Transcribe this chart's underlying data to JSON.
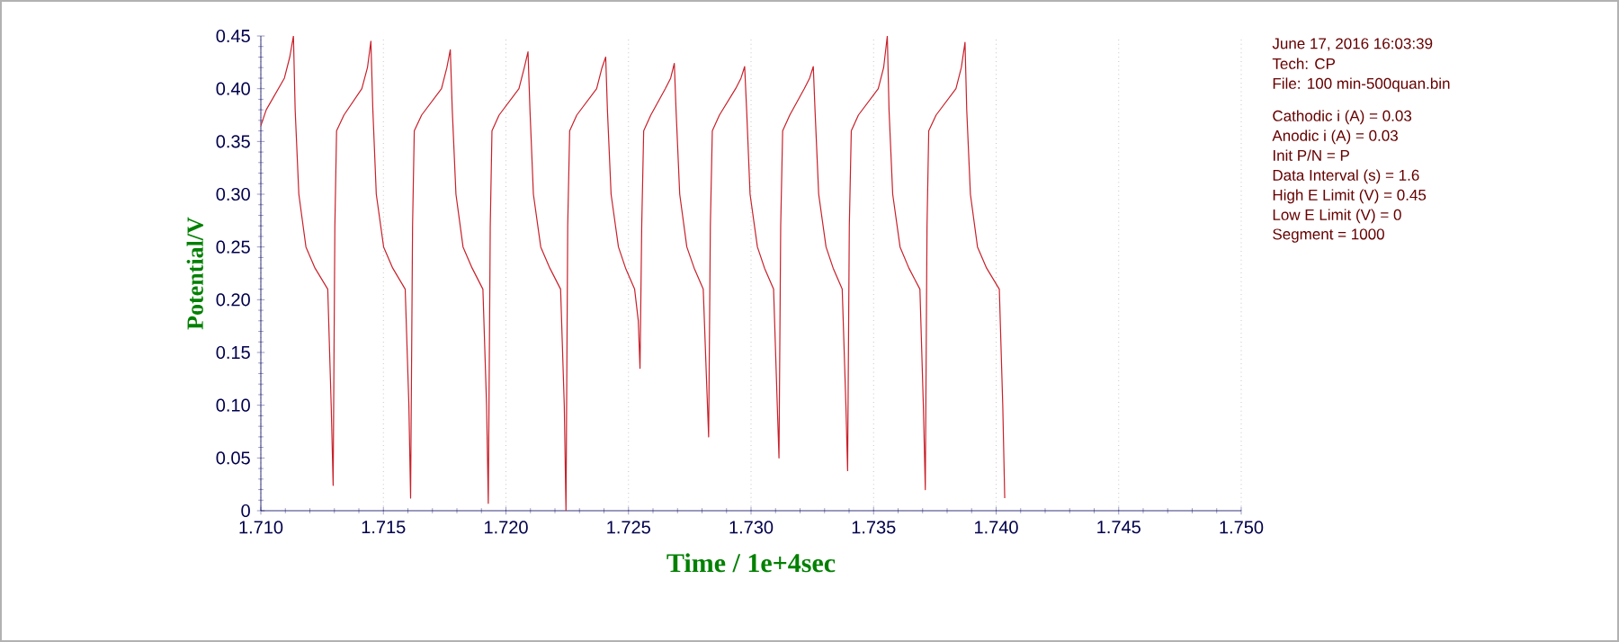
{
  "chart_data": {
    "type": "line",
    "xlabel": "Time / 1e+4sec",
    "ylabel": "Potential/V",
    "xlim": [
      1.71,
      1.75
    ],
    "ylim": [
      0,
      0.45
    ],
    "xticks": [
      {
        "value": 1.71,
        "label": "1.710"
      },
      {
        "value": 1.715,
        "label": "1.715"
      },
      {
        "value": 1.72,
        "label": "1.720"
      },
      {
        "value": 1.725,
        "label": "1.725"
      },
      {
        "value": 1.73,
        "label": "1.730"
      },
      {
        "value": 1.735,
        "label": "1.735"
      },
      {
        "value": 1.74,
        "label": "1.740"
      },
      {
        "value": 1.745,
        "label": "1.745"
      },
      {
        "value": 1.75,
        "label": "1.750"
      }
    ],
    "yticks": [
      {
        "value": 0,
        "label": "0"
      },
      {
        "value": 0.05,
        "label": "0.05"
      },
      {
        "value": 0.1,
        "label": "0.10"
      },
      {
        "value": 0.15,
        "label": "0.15"
      },
      {
        "value": 0.2,
        "label": "0.20"
      },
      {
        "value": 0.25,
        "label": "0.25"
      },
      {
        "value": 0.3,
        "label": "0.30"
      },
      {
        "value": 0.35,
        "label": "0.35"
      },
      {
        "value": 0.4,
        "label": "0.40"
      },
      {
        "value": 0.45,
        "label": "0.45"
      }
    ],
    "grid": "x",
    "marker": "none",
    "line_style": "solid",
    "annotations": [
      "June 17, 2016   16:03:39",
      "Tech: CP",
      "File: 100 min-500quan.bin",
      "Cathodic i (A) = 0.03",
      "Anodic i (A) = 0.03",
      "Init P/N = P",
      "Data Interval (s) = 1.6",
      "High E Limit (V) = 0.45",
      "Low E Limit (V) = 0",
      "Segment = 1000"
    ],
    "series": [
      {
        "color": "#c8202a",
        "x": [
          1.71,
          1.71022,
          1.71096,
          1.71118,
          1.71133,
          1.7114,
          1.71155,
          1.71184,
          1.71221,
          1.71273,
          1.71287,
          1.71295,
          1.71302,
          1.71309,
          1.71339,
          1.71412,
          1.71435,
          1.71449,
          1.71457,
          1.71471,
          1.71501,
          1.71538,
          1.71589,
          1.71604,
          1.71611,
          1.71619,
          1.71626,
          1.71656,
          1.71737,
          1.71759,
          1.71773,
          1.71781,
          1.71796,
          1.71825,
          1.71862,
          1.71906,
          1.71921,
          1.71928,
          1.71936,
          1.71943,
          1.71972,
          1.72053,
          1.72075,
          1.7209,
          1.72098,
          1.72112,
          1.72142,
          1.72179,
          1.72223,
          1.72238,
          1.72245,
          1.72252,
          1.7226,
          1.72289,
          1.7237,
          1.72392,
          1.72407,
          1.72414,
          1.72429,
          1.72459,
          1.72488,
          1.72525,
          1.7254,
          1.72547,
          1.72554,
          1.72562,
          1.72591,
          1.7265,
          1.72672,
          1.72687,
          1.72694,
          1.72709,
          1.72738,
          1.72768,
          1.72805,
          1.72819,
          1.72827,
          1.72834,
          1.72842,
          1.72871,
          1.72937,
          1.72959,
          1.72974,
          1.72982,
          1.72996,
          1.73026,
          1.73055,
          1.73092,
          1.73107,
          1.73114,
          1.73121,
          1.73129,
          1.73158,
          1.73217,
          1.73239,
          1.73254,
          1.73261,
          1.73276,
          1.73306,
          1.73335,
          1.73372,
          1.73387,
          1.73394,
          1.73401,
          1.73409,
          1.73438,
          1.73519,
          1.73541,
          1.73556,
          1.73563,
          1.73578,
          1.73608,
          1.73644,
          1.73689,
          1.73703,
          1.73711,
          1.73718,
          1.73725,
          1.73755,
          1.73836,
          1.73858,
          1.73873,
          1.7388,
          1.73895,
          1.73924,
          1.73961,
          1.74013,
          1.74027,
          1.74035
        ],
        "values": [
          0.365,
          0.38,
          0.41,
          0.43,
          0.45,
          0.38,
          0.3,
          0.25,
          0.23,
          0.21,
          0.1,
          0.024,
          0.27,
          0.36,
          0.375,
          0.4,
          0.42,
          0.445,
          0.38,
          0.3,
          0.25,
          0.23,
          0.21,
          0.1,
          0.012,
          0.27,
          0.36,
          0.375,
          0.4,
          0.42,
          0.437,
          0.38,
          0.3,
          0.25,
          0.23,
          0.21,
          0.1,
          0.007,
          0.27,
          0.36,
          0.375,
          0.4,
          0.42,
          0.435,
          0.38,
          0.3,
          0.25,
          0.23,
          0.21,
          0.1,
          0.0,
          0.27,
          0.36,
          0.375,
          0.4,
          0.42,
          0.43,
          0.38,
          0.3,
          0.25,
          0.23,
          0.21,
          0.18,
          0.135,
          0.27,
          0.36,
          0.375,
          0.4,
          0.41,
          0.424,
          0.38,
          0.3,
          0.25,
          0.23,
          0.21,
          0.12,
          0.07,
          0.27,
          0.36,
          0.375,
          0.4,
          0.41,
          0.421,
          0.38,
          0.3,
          0.25,
          0.23,
          0.21,
          0.1,
          0.05,
          0.27,
          0.36,
          0.375,
          0.4,
          0.41,
          0.421,
          0.38,
          0.3,
          0.25,
          0.23,
          0.21,
          0.1,
          0.038,
          0.27,
          0.36,
          0.375,
          0.4,
          0.42,
          0.45,
          0.38,
          0.3,
          0.25,
          0.23,
          0.21,
          0.1,
          0.02,
          0.27,
          0.36,
          0.375,
          0.4,
          0.42,
          0.444,
          0.38,
          0.3,
          0.25,
          0.23,
          0.21,
          0.1,
          0.012
        ]
      }
    ]
  }
}
